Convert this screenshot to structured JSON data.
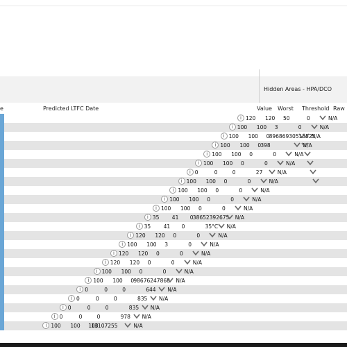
{
  "panel": {
    "title": "Hidden Areas - HPA/DCO"
  },
  "columns": {
    "left_fragment": "e",
    "predicted": "Predicted LTFC Date",
    "value": "Value",
    "worst": "Worst",
    "threshold": "Threshold",
    "raw": "Raw"
  },
  "icons": {
    "row_icon": "info-circle-icon",
    "status_icon": "chevron-down-icon"
  },
  "rows": [
    {
      "c1": "120",
      "c2": "120",
      "c3": "50",
      "c4": "0",
      "c5": "",
      "n": "N/A"
    },
    {
      "c1": "100",
      "c2": "100",
      "c3": "3",
      "c4": "0",
      "c5": "",
      "n": "N/A"
    },
    {
      "c1": "100",
      "c2": "100",
      "c3": "0",
      "c4": "",
      "c5": "89686930515525",
      "n": "N/A"
    },
    {
      "c1": "100",
      "c2": "100",
      "c3": "0",
      "c4": "",
      "c5": "398",
      "n": "N/A"
    },
    {
      "c1": "100",
      "c2": "100",
      "c3": "0",
      "c4": "0",
      "c5": "",
      "n": "N/A"
    },
    {
      "c1": "100",
      "c2": "100",
      "c3": "0",
      "c4": "0",
      "c5": "",
      "n": "N/A"
    },
    {
      "c1": "0",
      "c2": "0",
      "c3": "0",
      "c4": "27",
      "c5": "",
      "n": "N/A"
    },
    {
      "c1": "100",
      "c2": "100",
      "c3": "0",
      "c4": "0",
      "c5": "",
      "n": "N/A"
    },
    {
      "c1": "100",
      "c2": "100",
      "c3": "0",
      "c4": "0",
      "c5": "",
      "n": "N/A"
    },
    {
      "c1": "100",
      "c2": "100",
      "c3": "0",
      "c4": "0",
      "c5": "",
      "n": "N/A"
    },
    {
      "c1": "100",
      "c2": "100",
      "c3": "0",
      "c4": "0",
      "c5": "",
      "n": "N/A"
    },
    {
      "c1": "35",
      "c2": "41",
      "c3": "0",
      "c4": "",
      "c5": "38652392675",
      "n": "N/A"
    },
    {
      "c1": "35",
      "c2": "41",
      "c3": "0",
      "c4": "35°C",
      "c5": "",
      "n": "N/A"
    },
    {
      "c1": "120",
      "c2": "120",
      "c3": "0",
      "c4": "0",
      "c5": "",
      "n": "N/A"
    },
    {
      "c1": "100",
      "c2": "100",
      "c3": "3",
      "c4": "0",
      "c5": "",
      "n": "N/A"
    },
    {
      "c1": "120",
      "c2": "120",
      "c3": "0",
      "c4": "0",
      "c5": "",
      "n": "N/A"
    },
    {
      "c1": "120",
      "c2": "120",
      "c3": "0",
      "c4": "0",
      "c5": "",
      "n": "N/A"
    },
    {
      "c1": "100",
      "c2": "100",
      "c3": "0",
      "c4": "0",
      "c5": "",
      "n": "N/A"
    },
    {
      "c1": "100",
      "c2": "100",
      "c3": "0",
      "c4": "",
      "c5": "98676247868",
      "n": "N/A"
    },
    {
      "c1": "0",
      "c2": "0",
      "c3": "0",
      "c4": "644",
      "c5": "",
      "n": "N/A"
    },
    {
      "c1": "0",
      "c2": "0",
      "c3": "0",
      "c4": "835",
      "c5": "",
      "n": "N/A"
    },
    {
      "c1": "0",
      "c2": "0",
      "c3": "0",
      "c4": "835",
      "c5": "",
      "n": "N/A"
    },
    {
      "c1": "0",
      "c2": "0",
      "c3": "0",
      "c4": "978",
      "c5": "",
      "n": "N/A"
    },
    {
      "c1": "100",
      "c2": "100",
      "c3": "100",
      "c4": "",
      "c5": "13107255",
      "n": "N/A"
    }
  ]
}
